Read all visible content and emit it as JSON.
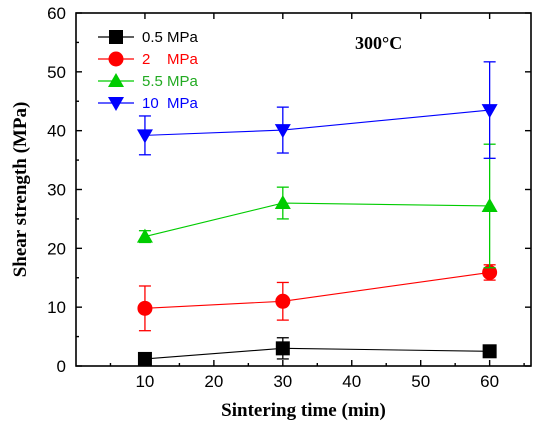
{
  "chart_data": {
    "type": "line",
    "title": "",
    "annotation": "300°C",
    "xlabel": "Sintering time (min)",
    "ylabel": "Shear strength (MPa)",
    "xlim": [
      0,
      66
    ],
    "ylim": [
      0,
      60
    ],
    "xticks": [
      10,
      20,
      30,
      40,
      50,
      60
    ],
    "yticks": [
      0,
      10,
      20,
      30,
      40,
      50,
      60
    ],
    "legend_position": "top-left",
    "grid": false,
    "series": [
      {
        "name": "0.5 MPa",
        "color": "#000000",
        "marker": "square",
        "x": [
          10,
          30,
          60
        ],
        "y": [
          1.2,
          3.0,
          2.5
        ],
        "err": [
          0.4,
          1.8,
          1.0
        ]
      },
      {
        "name": "2    MPa",
        "color": "#ff0000",
        "marker": "circle",
        "x": [
          10,
          30,
          60
        ],
        "y": [
          9.8,
          11.0,
          15.9
        ],
        "err": [
          3.8,
          3.2,
          1.3
        ]
      },
      {
        "name": "5.5 MPa",
        "color": "#00cc00",
        "marker": "triangle-up",
        "x": [
          10,
          30,
          60
        ],
        "y": [
          22.0,
          27.7,
          27.2
        ],
        "err": [
          1.0,
          2.7,
          10.5
        ]
      },
      {
        "name": "10  MPa",
        "color": "#0000ff",
        "marker": "triangle-down",
        "x": [
          10,
          30,
          60
        ],
        "y": [
          39.2,
          40.1,
          43.5
        ],
        "err": [
          3.3,
          3.9,
          8.2
        ]
      }
    ]
  }
}
